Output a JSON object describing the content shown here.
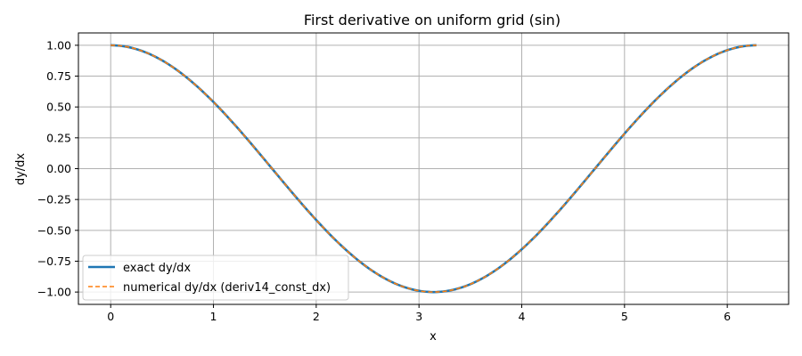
{
  "chart_data": {
    "type": "line",
    "title": "First derivative on uniform grid (sin)",
    "xlabel": "x",
    "ylabel": "dy/dx",
    "xlim": [
      -0.314,
      6.597
    ],
    "ylim": [
      -1.1,
      1.1
    ],
    "xticks": [
      0,
      1,
      2,
      3,
      4,
      5,
      6
    ],
    "yticks": [
      -1.0,
      -0.75,
      -0.5,
      -0.25,
      0.0,
      0.25,
      0.5,
      0.75,
      1.0
    ],
    "ytick_labels": [
      "−1.00",
      "−0.75",
      "−0.50",
      "−0.25",
      "0.00",
      "0.25",
      "0.50",
      "0.75",
      "1.00"
    ],
    "grid": true,
    "legend_position": "lower-left",
    "x_range": [
      0,
      6.2832
    ],
    "series": [
      {
        "name": "exact dy/dx",
        "function": "cos(x)",
        "color": "#1f77b4",
        "style": "solid"
      },
      {
        "name": "numerical dy/dx (deriv14_const_dx)",
        "function": "cos(x)",
        "color": "#ff7f0e",
        "style": "dashed"
      }
    ]
  }
}
